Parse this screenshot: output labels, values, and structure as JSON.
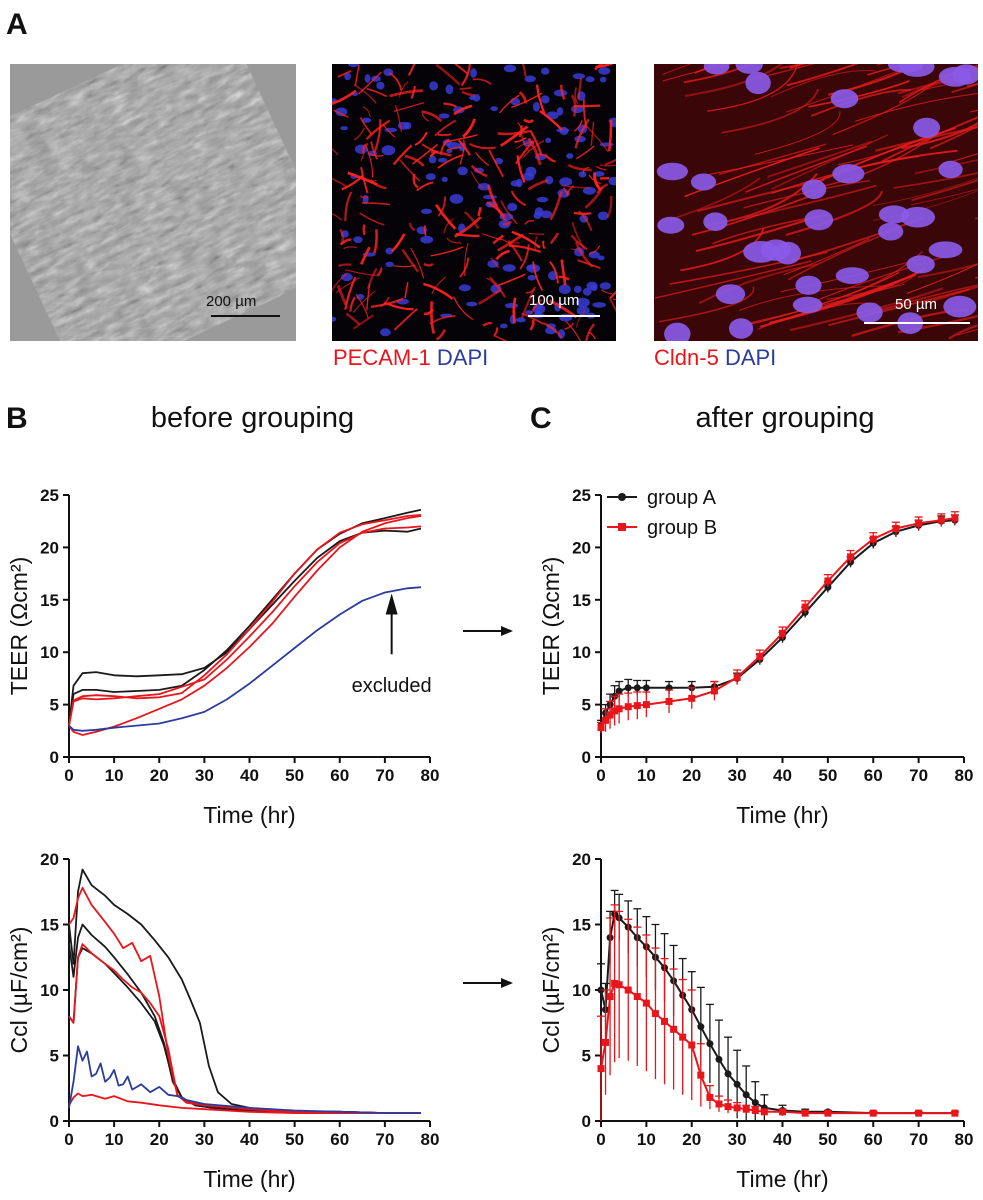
{
  "panel_labels": {
    "a": "A",
    "b": "B",
    "c": "C"
  },
  "headings": {
    "b": "before grouping",
    "c": "after grouping"
  },
  "micrographs": [
    {
      "scale_bar": "200 µm"
    },
    {
      "scale_bar": "100 µm",
      "stain_red": "PECAM-1",
      "stain_blue": "DAPI"
    },
    {
      "scale_bar": "50 µm",
      "stain_red": "Cldn-5",
      "stain_blue": "DAPI"
    }
  ],
  "colors": {
    "black": "#1a1a1a",
    "red": "#e8151b",
    "blue": "#2b3c9e",
    "gray": "#4a4a4a"
  },
  "arrow_icon": "right-arrow-icon",
  "chart_data": [
    {
      "id": "b_teer",
      "type": "line",
      "xlabel": "Time (hr)",
      "ylabel": "TEER (Ωcm²)",
      "xlim": [
        0,
        80
      ],
      "ylim": [
        0,
        25
      ],
      "xticks": [
        0,
        10,
        20,
        30,
        40,
        50,
        60,
        70,
        80
      ],
      "yticks": [
        0,
        5,
        10,
        15,
        20,
        25
      ],
      "annotation": "excluded",
      "series": [
        {
          "color": "black",
          "x": [
            0,
            1,
            3,
            6,
            10,
            15,
            20,
            25,
            30,
            35,
            40,
            45,
            50,
            55,
            60,
            65,
            70,
            75,
            78
          ],
          "y": [
            3.0,
            6.8,
            8.0,
            8.1,
            7.8,
            7.7,
            7.8,
            7.9,
            8.5,
            10.0,
            12.2,
            14.5,
            16.8,
            19.0,
            20.6,
            21.4,
            21.6,
            21.5,
            21.8
          ]
        },
        {
          "color": "black",
          "x": [
            0,
            1,
            3,
            6,
            10,
            15,
            20,
            25,
            30,
            35,
            40,
            45,
            50,
            55,
            60,
            65,
            70,
            75,
            78
          ],
          "y": [
            3.0,
            6.0,
            6.4,
            6.4,
            6.2,
            6.3,
            6.4,
            6.8,
            8.3,
            10.2,
            12.5,
            15.0,
            17.5,
            19.8,
            21.3,
            22.3,
            22.8,
            23.3,
            23.6
          ]
        },
        {
          "color": "red",
          "x": [
            0,
            1,
            3,
            6,
            10,
            15,
            20,
            25,
            30,
            35,
            40,
            45,
            50,
            55,
            60,
            65,
            70,
            75,
            78
          ],
          "y": [
            3.0,
            5.4,
            5.8,
            5.9,
            5.8,
            5.6,
            5.7,
            6.1,
            7.8,
            9.8,
            12.2,
            14.8,
            17.5,
            19.8,
            21.4,
            22.2,
            22.6,
            23.0,
            23.1
          ]
        },
        {
          "color": "red",
          "x": [
            0,
            1,
            3,
            6,
            10,
            15,
            20,
            25,
            30,
            35,
            40,
            45,
            50,
            55,
            60,
            65,
            70,
            75,
            78
          ],
          "y": [
            3.0,
            5.3,
            5.6,
            5.5,
            5.6,
            5.8,
            6.0,
            6.7,
            7.4,
            9.3,
            11.5,
            13.8,
            16.3,
            18.6,
            20.4,
            21.4,
            21.8,
            21.9,
            22.0
          ]
        },
        {
          "color": "red",
          "x": [
            0,
            1,
            3,
            6,
            10,
            15,
            20,
            25,
            30,
            35,
            40,
            45,
            50,
            55,
            60,
            65,
            70,
            75,
            78
          ],
          "y": [
            3.0,
            2.4,
            2.1,
            2.4,
            2.9,
            3.7,
            4.6,
            5.5,
            6.8,
            8.5,
            10.5,
            12.7,
            15.3,
            17.8,
            20.0,
            21.5,
            22.3,
            22.8,
            23.0
          ]
        },
        {
          "color": "blue",
          "x": [
            0,
            1,
            3,
            6,
            10,
            15,
            20,
            25,
            30,
            35,
            40,
            45,
            50,
            55,
            60,
            65,
            70,
            75,
            78
          ],
          "y": [
            3.0,
            2.6,
            2.5,
            2.6,
            2.8,
            3.0,
            3.2,
            3.7,
            4.3,
            5.5,
            7.0,
            8.7,
            10.4,
            12.1,
            13.6,
            14.9,
            15.7,
            16.1,
            16.2
          ]
        }
      ]
    },
    {
      "id": "c_teer",
      "type": "line",
      "xlabel": "Time (hr)",
      "ylabel": "TEER (Ωcm²)",
      "xlim": [
        0,
        80
      ],
      "ylim": [
        0,
        25
      ],
      "xticks": [
        0,
        10,
        20,
        30,
        40,
        50,
        60,
        70,
        80
      ],
      "yticks": [
        0,
        5,
        10,
        15,
        20,
        25
      ],
      "legend": "top-left",
      "series": [
        {
          "name": "group A",
          "color": "black",
          "marker": "circle",
          "x": [
            0,
            1,
            2,
            3,
            4,
            6,
            8,
            10,
            15,
            20,
            25,
            30,
            35,
            40,
            45,
            50,
            55,
            60,
            65,
            70,
            75,
            78
          ],
          "y": [
            3.0,
            4.2,
            5.0,
            5.8,
            6.3,
            6.6,
            6.6,
            6.6,
            6.6,
            6.6,
            6.7,
            7.5,
            9.3,
            11.4,
            13.8,
            16.2,
            18.6,
            20.4,
            21.5,
            22.1,
            22.5,
            22.6
          ],
          "err": [
            0.5,
            0.8,
            1.0,
            1.0,
            0.9,
            0.8,
            0.7,
            0.7,
            0.6,
            0.6,
            0.5,
            0.5,
            0.5,
            0.5,
            0.5,
            0.5,
            0.5,
            0.5,
            0.5,
            0.5,
            0.5,
            0.5
          ]
        },
        {
          "name": "group B",
          "color": "red",
          "marker": "square",
          "x": [
            0,
            1,
            2,
            3,
            4,
            6,
            8,
            10,
            15,
            20,
            25,
            30,
            35,
            40,
            45,
            50,
            55,
            60,
            65,
            70,
            75,
            78
          ],
          "y": [
            2.8,
            3.5,
            4.0,
            4.4,
            4.6,
            4.8,
            4.9,
            5.0,
            5.3,
            5.6,
            6.3,
            7.6,
            9.6,
            11.8,
            14.3,
            16.8,
            19.1,
            20.8,
            21.8,
            22.3,
            22.6,
            22.8
          ],
          "err": [
            0.5,
            1.1,
            1.3,
            1.4,
            1.4,
            1.3,
            1.3,
            1.2,
            1.1,
            1.0,
            0.9,
            0.7,
            0.6,
            0.6,
            0.6,
            0.6,
            0.6,
            0.6,
            0.6,
            0.6,
            0.6,
            0.6
          ]
        }
      ]
    },
    {
      "id": "b_ccl",
      "type": "line",
      "xlabel": "Time (hr)",
      "ylabel": "Ccl (µF/cm²)",
      "xlim": [
        0,
        80
      ],
      "ylim": [
        0,
        20
      ],
      "xticks": [
        0,
        10,
        20,
        30,
        40,
        50,
        60,
        70,
        80
      ],
      "yticks": [
        0,
        5,
        10,
        15,
        20
      ],
      "series": [
        {
          "color": "black",
          "x": [
            0,
            1,
            2,
            3,
            5,
            8,
            10,
            13,
            16,
            19,
            22,
            25,
            27,
            29,
            31,
            33,
            36,
            40,
            45,
            50,
            60,
            70,
            78
          ],
          "y": [
            15.0,
            12.0,
            17.5,
            19.2,
            18.0,
            17.2,
            16.5,
            15.8,
            15.0,
            13.8,
            12.5,
            10.8,
            9.2,
            7.5,
            4.2,
            2.2,
            1.3,
            1.0,
            0.8,
            0.7,
            0.7,
            0.6,
            0.6
          ]
        },
        {
          "color": "black",
          "x": [
            0,
            1,
            2,
            3,
            5,
            8,
            10,
            13,
            16,
            19,
            21,
            23,
            25,
            28,
            32,
            40,
            50,
            60,
            70,
            78
          ],
          "y": [
            13.5,
            11.0,
            14.0,
            15.0,
            14.2,
            13.3,
            12.5,
            11.2,
            9.8,
            8.0,
            6.0,
            3.0,
            1.8,
            1.2,
            1.0,
            0.8,
            0.7,
            0.7,
            0.6,
            0.6
          ]
        },
        {
          "color": "black",
          "x": [
            0,
            1,
            2,
            3,
            5,
            8,
            10,
            13,
            16,
            19,
            21,
            23,
            25,
            28,
            32,
            40,
            50,
            60,
            70,
            78
          ],
          "y": [
            8.0,
            7.5,
            12.5,
            13.2,
            12.8,
            12.0,
            11.3,
            10.2,
            9.0,
            7.6,
            5.8,
            3.2,
            1.8,
            1.2,
            1.0,
            0.8,
            0.7,
            0.7,
            0.6,
            0.6
          ]
        },
        {
          "color": "red",
          "x": [
            0,
            1,
            2,
            3,
            5,
            8,
            10,
            12,
            14,
            16,
            18,
            20,
            22,
            24,
            26,
            30,
            40,
            50,
            60,
            70,
            78
          ],
          "y": [
            15.0,
            15.5,
            17.0,
            17.8,
            16.5,
            15.2,
            14.3,
            13.2,
            13.6,
            12.2,
            12.6,
            9.5,
            5.0,
            2.0,
            1.5,
            1.2,
            0.9,
            0.7,
            0.6,
            0.6,
            0.6
          ]
        },
        {
          "color": "red",
          "x": [
            0,
            1,
            2,
            3,
            5,
            8,
            10,
            12,
            14,
            16,
            18,
            20,
            22,
            24,
            26,
            30,
            40,
            50,
            60,
            70,
            78
          ],
          "y": [
            8.0,
            7.5,
            12.5,
            13.5,
            12.8,
            12.0,
            11.5,
            10.8,
            10.2,
            9.8,
            9.0,
            8.0,
            5.5,
            2.0,
            1.4,
            1.2,
            0.9,
            0.7,
            0.6,
            0.6,
            0.6
          ]
        },
        {
          "color": "red",
          "x": [
            0,
            1,
            2,
            3,
            5,
            8,
            10,
            13,
            16,
            20,
            25,
            30,
            40,
            50,
            60,
            70,
            78
          ],
          "y": [
            1.2,
            1.8,
            2.1,
            1.9,
            2.0,
            1.7,
            1.9,
            1.5,
            1.4,
            1.2,
            1.0,
            0.9,
            0.7,
            0.6,
            0.6,
            0.6,
            0.6
          ]
        },
        {
          "color": "blue",
          "x": [
            0,
            1,
            2,
            3,
            4,
            5,
            6,
            7,
            8,
            9,
            10,
            11,
            12,
            13,
            14,
            16,
            18,
            20,
            22,
            24,
            26,
            30,
            40,
            50,
            60,
            70,
            78
          ],
          "y": [
            1.0,
            3.0,
            5.7,
            4.6,
            5.3,
            3.4,
            3.6,
            4.4,
            3.0,
            3.3,
            3.9,
            2.7,
            2.8,
            3.4,
            2.4,
            2.8,
            2.2,
            2.6,
            2.0,
            1.9,
            1.6,
            1.3,
            1.0,
            0.8,
            0.7,
            0.6,
            0.6
          ]
        }
      ]
    },
    {
      "id": "c_ccl",
      "type": "line",
      "xlabel": "Time (hr)",
      "ylabel": "Ccl (µF/cm²)",
      "xlim": [
        0,
        80
      ],
      "ylim": [
        0,
        20
      ],
      "xticks": [
        0,
        10,
        20,
        30,
        40,
        50,
        60,
        70,
        80
      ],
      "yticks": [
        0,
        5,
        10,
        15,
        20
      ],
      "series": [
        {
          "name": "group A",
          "color": "black",
          "marker": "circle",
          "x": [
            0,
            1,
            2,
            3,
            4,
            6,
            8,
            10,
            12,
            14,
            16,
            18,
            20,
            22,
            24,
            26,
            28,
            30,
            32,
            34,
            36,
            40,
            45,
            50,
            60,
            70,
            78
          ],
          "y": [
            10.0,
            8.5,
            14.0,
            15.8,
            15.5,
            14.8,
            14.0,
            13.3,
            12.5,
            11.7,
            10.7,
            9.6,
            8.5,
            7.2,
            5.9,
            4.7,
            3.6,
            2.8,
            2.0,
            1.4,
            1.0,
            0.8,
            0.7,
            0.7,
            0.6,
            0.6,
            0.6
          ],
          "err": [
            2.0,
            2.0,
            2.0,
            1.8,
            1.8,
            2.0,
            2.2,
            2.3,
            2.5,
            2.6,
            2.7,
            2.8,
            2.9,
            3.0,
            3.0,
            3.0,
            2.8,
            2.6,
            2.2,
            1.6,
            1.0,
            0.4,
            0.2,
            0.1,
            0.1,
            0.1,
            0.1
          ]
        },
        {
          "name": "group B",
          "color": "red",
          "marker": "square",
          "x": [
            0,
            1,
            2,
            3,
            4,
            6,
            8,
            10,
            12,
            14,
            16,
            18,
            20,
            22,
            24,
            26,
            28,
            30,
            32,
            34,
            36,
            40,
            45,
            50,
            60,
            70,
            78
          ],
          "y": [
            4.0,
            6.0,
            9.5,
            10.5,
            10.4,
            10.0,
            9.5,
            9.0,
            8.2,
            7.6,
            7.0,
            6.4,
            5.8,
            3.5,
            1.8,
            1.3,
            1.1,
            1.0,
            0.9,
            0.8,
            0.7,
            0.7,
            0.6,
            0.6,
            0.6,
            0.6,
            0.6
          ],
          "err": [
            4.0,
            4.0,
            6.0,
            6.0,
            5.6,
            5.4,
            5.3,
            5.2,
            5.0,
            4.8,
            4.6,
            4.4,
            4.2,
            2.4,
            0.9,
            0.6,
            0.5,
            0.4,
            0.3,
            0.3,
            0.2,
            0.2,
            0.1,
            0.1,
            0.1,
            0.1,
            0.1
          ]
        }
      ]
    }
  ]
}
